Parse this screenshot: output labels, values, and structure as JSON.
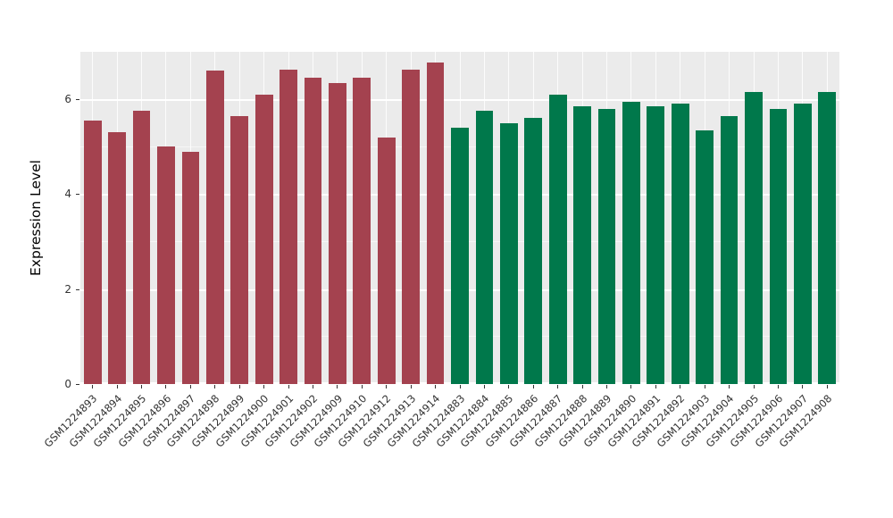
{
  "chart_data": {
    "type": "bar",
    "title": "",
    "xlabel": "",
    "ylabel": "Expression Level",
    "ylim": [
      0,
      7
    ],
    "yticks": [
      0,
      2,
      4,
      6
    ],
    "yticks_minor": [
      1,
      3,
      5
    ],
    "grid": true,
    "legend_position": "none",
    "panel_background": "#EBEBEB",
    "group_colors": {
      "maroon": "#A4424F",
      "green": "#00784B"
    },
    "categories": [
      "GSM1224893",
      "GSM1224894",
      "GSM1224895",
      "GSM1224896",
      "GSM1224897",
      "GSM1224898",
      "GSM1224899",
      "GSM1224900",
      "GSM1224901",
      "GSM1224902",
      "GSM1224909",
      "GSM1224910",
      "GSM1224912",
      "GSM1224913",
      "GSM1224914",
      "GSM1224883",
      "GSM1224884",
      "GSM1224885",
      "GSM1224886",
      "GSM1224887",
      "GSM1224888",
      "GSM1224889",
      "GSM1224890",
      "GSM1224891",
      "GSM1224892",
      "GSM1224903",
      "GSM1224904",
      "GSM1224905",
      "GSM1224906",
      "GSM1224907",
      "GSM1224908"
    ],
    "values": [
      5.55,
      5.3,
      5.75,
      5.0,
      4.9,
      6.6,
      5.65,
      6.1,
      6.62,
      6.45,
      6.35,
      6.45,
      5.2,
      6.62,
      6.78,
      5.4,
      5.75,
      5.5,
      5.6,
      6.1,
      5.85,
      5.8,
      5.95,
      5.85,
      5.9,
      5.35,
      5.65,
      6.15,
      5.8,
      5.9,
      6.15
    ],
    "groups": [
      "maroon",
      "maroon",
      "maroon",
      "maroon",
      "maroon",
      "maroon",
      "maroon",
      "maroon",
      "maroon",
      "maroon",
      "maroon",
      "maroon",
      "maroon",
      "maroon",
      "maroon",
      "green",
      "green",
      "green",
      "green",
      "green",
      "green",
      "green",
      "green",
      "green",
      "green",
      "green",
      "green",
      "green",
      "green",
      "green",
      "green"
    ]
  }
}
